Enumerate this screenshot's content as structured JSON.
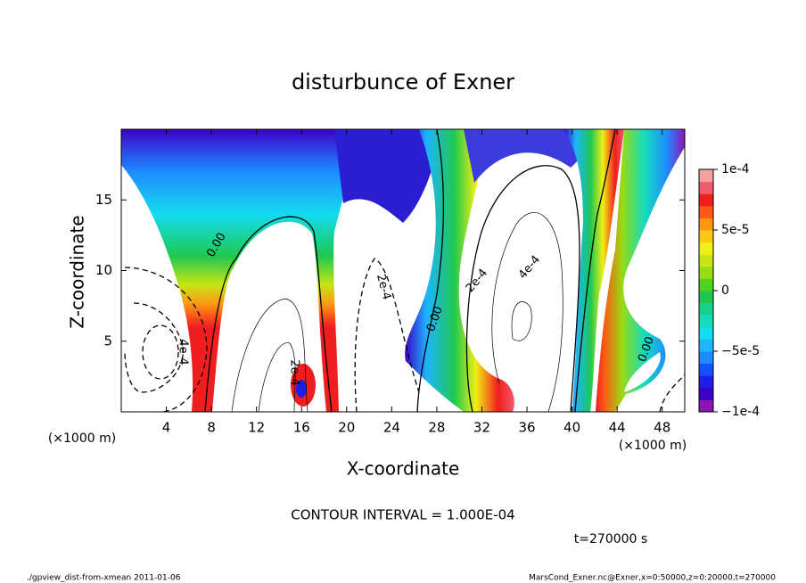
{
  "chart_data": {
    "type": "contour",
    "title": "disturbunce of Exner",
    "x_label": "X-coordinate",
    "y_label": "Z-coordinate",
    "x_unit": "(×1000 m)",
    "y_unit": "(×1000 m)",
    "xlim": [
      0,
      50
    ],
    "xticks": [
      4,
      8,
      12,
      16,
      20,
      24,
      28,
      32,
      36,
      40,
      44,
      48
    ],
    "ylim": [
      0,
      20
    ],
    "yticks": [
      5,
      10,
      15
    ],
    "colorbar": {
      "lim": [
        -0.0001,
        0.0001
      ],
      "ticks": [
        {
          "value": 0.0001,
          "label": "1e-4"
        },
        {
          "value": 5e-05,
          "label": "5e-5"
        },
        0,
        {
          "value": -5e-05,
          "label": "−5e-5"
        },
        {
          "value": -0.0001,
          "label": "−1e-4"
        }
      ],
      "colors": [
        "#8c14b4",
        "#3c00c8",
        "#1e1ee6",
        "#1450ff",
        "#1e8cff",
        "#1eb4ff",
        "#14dcf0",
        "#14dcbe",
        "#14d28c",
        "#1ec850",
        "#50d21e",
        "#96dc14",
        "#c8e614",
        "#f0f014",
        "#ffc814",
        "#ff9614",
        "#ff5a14",
        "#f01e1e",
        "#f05a6e",
        "#f5a0a0"
      ]
    },
    "contour_labels": [
      "0.00",
      "4e-4",
      "2e-4",
      "2e-4",
      "0.00",
      "2e-4",
      "4e-4",
      "0.00"
    ],
    "contour_interval": "CONTOUR INTERVAL = 1.000E-04",
    "time_label": "t=270000 s",
    "footer_left": "./gpview_dist-from-xmean  2011-01-06",
    "footer_right": "MarsCond_Exner.nc@Exner,x=0:50000,z=0:20000,t=270000"
  }
}
